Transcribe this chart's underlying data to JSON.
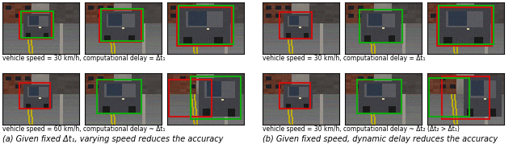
{
  "background_color": "#ffffff",
  "row1_label_left": "vehicle speed = 30 km/h, computational delay = Δt₁",
  "row2_label_left": "vehicle speed = 60 km/h, computational delay ~ Δt₁",
  "row1_label_right": "vehicle speed = 30 km/h, computational delay = Δt₁",
  "row2_label_right": "vehicle speed = 30 km/h, computational delay ~ Δt₂ (Δt₂ > Δt₁)",
  "caption_left": "(a) Given fixed Δt₁, varying speed reduces the accuracy",
  "caption_right": "(b) Given fixed speed, dynamic delay reduces the accuracy",
  "label_fontsize": 5.5,
  "caption_fontsize": 7.0,
  "red_box_color": "#cc1111",
  "green_box_color": "#11aa11"
}
